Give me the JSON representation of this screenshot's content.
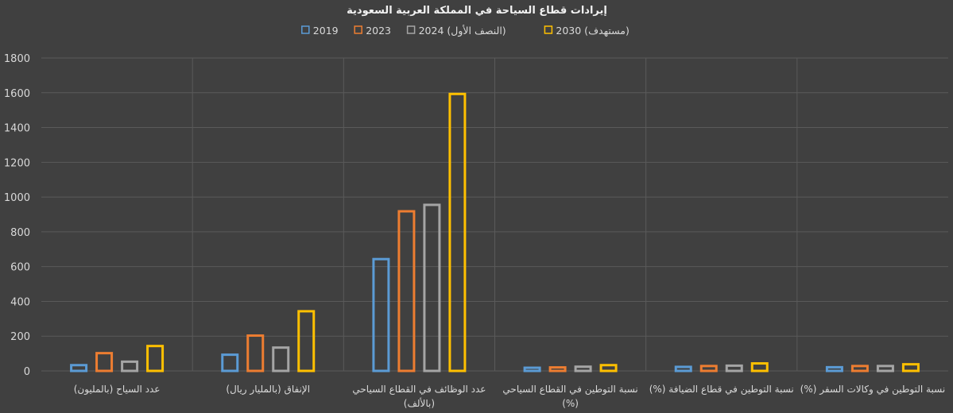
{
  "chart_data": {
    "type": "bar",
    "title": "إيرادات قطاع السياحة في المملكة العربية السعودية",
    "categories": [
      [
        "عدد السياح (بالمليون)"
      ],
      [
        "الإنفاق (بالمليار ريال)"
      ],
      [
        "عدد الوظائف في القطاع السياحي",
        "(بالألف)"
      ],
      [
        "نسبة التوطين في القطاع السياحي",
        "(%)"
      ],
      [
        "نسبة التوطين في قطاع الضيافة (%)"
      ],
      [
        "نسبة التوطين في وكالات السفر (%)"
      ]
    ],
    "series": [
      {
        "name": "2019",
        "color": "#5b9bd5",
        "values": [
          40,
          100,
          650,
          25,
          30,
          28
        ]
      },
      {
        "name": "2023",
        "color": "#ed7d31",
        "values": [
          109,
          210,
          925,
          27,
          35,
          35
        ]
      },
      {
        "name": "2024 (النصف الأول)",
        "color": "#a5a5a5",
        "values": [
          60,
          141,
          962,
          31,
          37,
          35
        ]
      },
      {
        "name": "2030 (مستهدف)",
        "color": "#ffc000",
        "values": [
          150,
          350,
          1600,
          40,
          50,
          45
        ]
      }
    ],
    "ylim": [
      0,
      1800
    ],
    "yticks": [
      0,
      200,
      400,
      600,
      800,
      1000,
      1200,
      1400,
      1600,
      1800
    ],
    "grid": true,
    "legend_position": "top"
  }
}
